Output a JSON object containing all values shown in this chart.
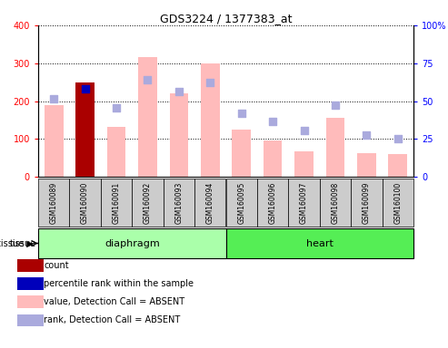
{
  "title": "GDS3224 / 1377383_at",
  "samples": [
    "GSM160089",
    "GSM160090",
    "GSM160091",
    "GSM160092",
    "GSM160093",
    "GSM160094",
    "GSM160095",
    "GSM160096",
    "GSM160097",
    "GSM160098",
    "GSM160099",
    "GSM160100"
  ],
  "bar_values": [
    190,
    250,
    132,
    315,
    220,
    300,
    125,
    95,
    68,
    155,
    63,
    60
  ],
  "bar_colors": [
    "#ffbbbb",
    "#aa0000",
    "#ffbbbb",
    "#ffbbbb",
    "#ffbbbb",
    "#ffbbbb",
    "#ffbbbb",
    "#ffbbbb",
    "#ffbbbb",
    "#ffbbbb",
    "#ffbbbb",
    "#ffbbbb"
  ],
  "rank_squares": [
    205,
    232,
    183,
    257,
    225,
    250,
    168,
    147,
    122,
    190,
    111,
    101
  ],
  "rank_colors": [
    "#aaaadd",
    "#0000bb",
    "#aaaadd",
    "#aaaadd",
    "#aaaadd",
    "#aaaadd",
    "#aaaadd",
    "#aaaadd",
    "#aaaadd",
    "#aaaadd",
    "#aaaadd",
    "#aaaadd"
  ],
  "tissues": [
    "diaphragm",
    "diaphragm",
    "diaphragm",
    "diaphragm",
    "diaphragm",
    "diaphragm",
    "heart",
    "heart",
    "heart",
    "heart",
    "heart",
    "heart"
  ],
  "diaphragm_color": "#aaffaa",
  "heart_color": "#55ee55",
  "tissue_colors": {
    "diaphragm": "#aaffaa",
    "heart": "#55ee55"
  },
  "ylim_left": [
    0,
    400
  ],
  "ylim_right": [
    0,
    100
  ],
  "yticks_left": [
    0,
    100,
    200,
    300,
    400
  ],
  "ytick_labels_right": [
    "0",
    "25",
    "50",
    "75",
    "100%"
  ],
  "legend_colors": [
    "#aa0000",
    "#0000bb",
    "#ffbbbb",
    "#aaaadd"
  ],
  "legend_labels": [
    "count",
    "percentile rank within the sample",
    "value, Detection Call = ABSENT",
    "rank, Detection Call = ABSENT"
  ]
}
